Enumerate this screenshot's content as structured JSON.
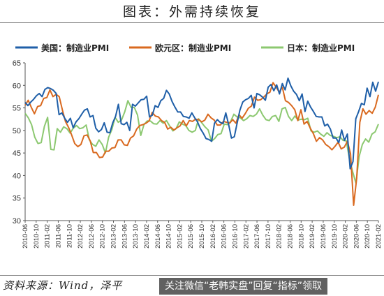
{
  "title": "图表：外需持续恢复",
  "source": "资料来源：Wind，泽平",
  "watermark": "关注微信“老韩实盘”回复“指标”领取",
  "chart_data": {
    "type": "line",
    "title": "图表：外需持续恢复",
    "ylim": [
      30,
      65
    ],
    "yticks": [
      30,
      35,
      40,
      45,
      50,
      55,
      60,
      65
    ],
    "xticks": [
      "2010-06",
      "2010-10",
      "2011-02",
      "2011-06",
      "2011-10",
      "2012-02",
      "2012-06",
      "2012-10",
      "2013-02",
      "2013-06",
      "2013-10",
      "2014-02",
      "2014-06",
      "2014-10",
      "2015-02",
      "2015-06",
      "2015-10",
      "2016-02",
      "2016-06",
      "2016-10",
      "2017-02",
      "2017-06",
      "2017-10",
      "2018-02",
      "2018-06",
      "2018-10",
      "2019-02",
      "2019-06",
      "2019-10",
      "2020-02",
      "2020-06",
      "2020-10",
      "2021-02"
    ],
    "x_start": "2010-06",
    "legend": "top",
    "series": [
      {
        "name": "美国：制造业PMI",
        "color": "#1f5fa8",
        "values": [
          56.2,
          55.5,
          56.3,
          56.9,
          57.7,
          58.2,
          57.5,
          59.1,
          59.5,
          59.3,
          58.9,
          58.2,
          53.5,
          53.9,
          52.7,
          51.8,
          52.7,
          50.6,
          51.9,
          52.6,
          53.6,
          54.5,
          54.8,
          53.0,
          53.3,
          50.5,
          49.7,
          50.2,
          51.7,
          49.6,
          49.5,
          51.7,
          53.1,
          55.8,
          51.5,
          51.3,
          51.8,
          50.0,
          55.8,
          55.4,
          56.1,
          56.8,
          56.9,
          57.6,
          53.0,
          53.4,
          55.5,
          55.1,
          56.6,
          57.1,
          58.9,
          58.1,
          56.4,
          55.2,
          54.1,
          54.1,
          53.1,
          53.0,
          52.7,
          53.9,
          52.8,
          51.9,
          50.4,
          49.4,
          48.2,
          48.0,
          47.6,
          51.6,
          52.4,
          51.8,
          51.5,
          53.9,
          51.3,
          48.3,
          48.6,
          51.6,
          54.5,
          56.3,
          56.8,
          57.1,
          57.8,
          55.0,
          58.2,
          57.9,
          57.4,
          56.7,
          59.6,
          60.2,
          58.8,
          60.1,
          58.1,
          60.4,
          59.0,
          61.6,
          59.9,
          58.7,
          58.0,
          56.6,
          58.1,
          54.2,
          56.5,
          55.2,
          54.2,
          53.1,
          53.0,
          53.0,
          51.0,
          51.4,
          50.3,
          48.3,
          48.3,
          47.3,
          50.1,
          47.8,
          49.2,
          41.5,
          43.1,
          52.6,
          54.2,
          56.0,
          55.7,
          59.4,
          57.5,
          60.7,
          58.7,
          60.8
        ]
      },
      {
        "name": "欧元区：制造业PMI",
        "color": "#d9691f",
        "values": [
          55.6,
          56.7,
          55.1,
          53.7,
          55.3,
          55.5,
          57.1,
          57.3,
          59.0,
          57.5,
          58.0,
          57.5,
          54.6,
          52.0,
          50.7,
          49.0,
          47.1,
          46.4,
          46.9,
          48.8,
          49.0,
          47.7,
          45.1,
          45.1,
          44.0,
          44.1,
          45.4,
          45.4,
          46.1,
          46.2,
          47.9,
          47.9,
          46.8,
          46.7,
          48.3,
          48.8,
          50.3,
          51.1,
          51.3,
          51.6,
          52.1,
          54.0,
          53.2,
          53.0,
          52.2,
          51.8,
          50.3,
          50.7,
          50.1,
          50.6,
          51.0,
          52.2,
          51.0,
          52.2,
          52.0,
          52.5,
          52.4,
          51.9,
          52.3,
          53.6,
          52.8,
          52.3,
          51.2,
          51.2,
          52.0,
          51.8,
          51.6,
          52.4,
          51.6,
          53.5,
          52.7,
          53.7,
          54.9,
          55.4,
          57.4,
          56.7,
          56.8,
          57.4,
          58.1,
          58.5,
          60.6,
          59.6,
          58.5,
          59.6,
          56.6,
          56.2,
          55.5,
          54.6,
          52.2,
          54.6,
          51.4,
          52.0,
          50.5,
          49.3,
          47.6,
          48.4,
          47.9,
          46.9,
          46.4,
          45.7,
          46.5,
          47.4,
          45.9,
          46.3,
          47.6,
          44.8,
          33.4,
          39.4,
          51.8,
          54.8,
          53.6,
          54.4,
          53.8,
          55.2,
          57.9
        ]
      },
      {
        "name": "日本：制造业PMI",
        "color": "#8cc870",
        "values": [
          53.8,
          52.8,
          51.3,
          48.5,
          47.1,
          47.3,
          50.9,
          52.9,
          45.8,
          45.7,
          50.4,
          49.6,
          50.8,
          50.4,
          49.4,
          50.5,
          51.1,
          50.4,
          50.6,
          51.2,
          47.9,
          46.9,
          46.5,
          47.9,
          46.9,
          45.0,
          48.5,
          50.2,
          52.9,
          51.8,
          52.3,
          54.1,
          56.6,
          55.1,
          55.1,
          53.4,
          48.9,
          51.3,
          52.1,
          52.1,
          51.5,
          51.4,
          52.2,
          51.6,
          52.2,
          51.0,
          49.9,
          50.4,
          51.9,
          51.4,
          51.1,
          50.0,
          49.6,
          50.0,
          52.6,
          51.7,
          50.8,
          50.1,
          47.6,
          48.2,
          49.1,
          49.3,
          51.4,
          51.3,
          52.0,
          53.6,
          53.0,
          52.8,
          52.2,
          52.6,
          53.3,
          53.1,
          53.6,
          54.8,
          53.4,
          52.4,
          52.2,
          53.1,
          53.3,
          52.0,
          54.8,
          55.1,
          53.1,
          52.2,
          53.2,
          52.3,
          52.5,
          52.4,
          52.7,
          49.9,
          49.6,
          49.9,
          49.2,
          48.7,
          49.5,
          48.9,
          48.7,
          48.4,
          48.6,
          47.8,
          47.7,
          43.6,
          40.8,
          38.3,
          44.2,
          46.9,
          48.1,
          47.4,
          49.2,
          49.7,
          51.4
        ]
      }
    ]
  }
}
